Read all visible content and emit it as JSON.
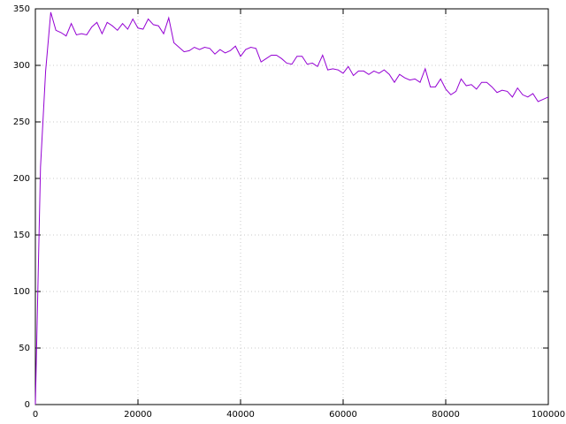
{
  "chart_data": {
    "type": "line",
    "x": [
      0,
      1000,
      2000,
      3000,
      4000,
      5000,
      6000,
      7000,
      8000,
      9000,
      10000,
      11000,
      12000,
      13000,
      14000,
      15000,
      16000,
      17000,
      18000,
      19000,
      20000,
      21000,
      22000,
      23000,
      24000,
      25000,
      26000,
      27000,
      28000,
      29000,
      30000,
      31000,
      32000,
      33000,
      34000,
      35000,
      36000,
      37000,
      38000,
      39000,
      40000,
      41000,
      42000,
      43000,
      44000,
      45000,
      46000,
      47000,
      48000,
      49000,
      50000,
      51000,
      52000,
      53000,
      54000,
      55000,
      56000,
      57000,
      58000,
      59000,
      60000,
      61000,
      62000,
      63000,
      64000,
      65000,
      66000,
      67000,
      68000,
      69000,
      70000,
      71000,
      72000,
      73000,
      74000,
      75000,
      76000,
      77000,
      78000,
      79000,
      80000,
      81000,
      82000,
      83000,
      84000,
      85000,
      86000,
      87000,
      88000,
      89000,
      90000,
      91000,
      92000,
      93000,
      94000,
      95000,
      96000,
      97000,
      98000,
      99000,
      100000
    ],
    "series": [
      {
        "color": "#9400d3",
        "values": [
          0,
          210,
          295,
          347,
          331,
          329,
          326,
          337,
          327,
          328,
          327,
          334,
          338,
          328,
          338,
          335,
          331,
          337,
          332,
          341,
          333,
          332,
          341,
          336,
          335,
          328,
          342,
          320,
          316,
          312,
          313,
          316,
          314,
          316,
          315,
          310,
          314,
          311,
          313,
          317,
          308,
          314,
          316,
          315,
          303,
          306,
          309,
          309,
          306,
          302,
          301,
          308,
          308,
          301,
          302,
          299,
          309,
          296,
          297,
          296,
          293,
          299,
          291,
          295,
          295,
          292,
          295,
          293,
          296,
          292,
          285,
          292,
          289,
          287,
          288,
          285,
          297,
          281,
          281,
          288,
          279,
          274,
          277,
          288,
          282,
          283,
          279,
          285,
          285,
          281,
          276,
          278,
          277,
          272,
          280,
          274,
          272,
          275,
          268,
          270,
          272
        ]
      }
    ],
    "xlim": [
      0,
      100000
    ],
    "ylim": [
      0,
      350
    ],
    "xticks": [
      0,
      20000,
      40000,
      60000,
      80000,
      100000
    ],
    "yticks": [
      0,
      50,
      100,
      150,
      200,
      250,
      300,
      350
    ],
    "grid": true
  }
}
